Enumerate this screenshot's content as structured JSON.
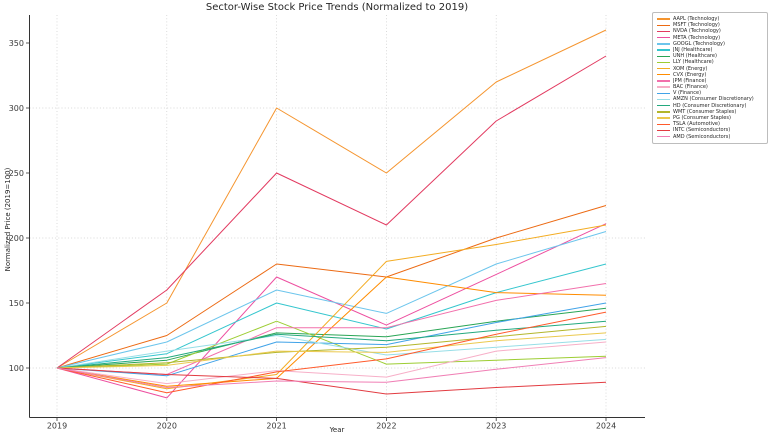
{
  "chart_data": {
    "type": "line",
    "title": "Sector-Wise Stock Price Trends (Normalized to 2019)",
    "xlabel": "Year",
    "ylabel": "Normalized Price (2019=100)",
    "x": [
      2019,
      2020,
      2021,
      2022,
      2023,
      2024
    ],
    "yticks": [
      100,
      150,
      200,
      250,
      300,
      350
    ],
    "grid_y": [
      100,
      200,
      300
    ],
    "ylim": [
      61,
      372
    ],
    "grid_style": "dotted",
    "legend_position": "upper right",
    "series": [
      {
        "label": "AAPL (Technology)",
        "color": "#F5952F",
        "values": [
          100,
          150,
          300,
          250,
          320,
          360
        ]
      },
      {
        "label": "MSFT (Technology)",
        "color": "#EC6A13",
        "values": [
          100,
          125,
          180,
          170,
          200,
          225
        ]
      },
      {
        "label": "NVDA (Technology)",
        "color": "#E23A60",
        "values": [
          100,
          160,
          250,
          210,
          290,
          340
        ]
      },
      {
        "label": "META (Technology)",
        "color": "#ED4FA0",
        "values": [
          100,
          77,
          170,
          133,
          172,
          211
        ]
      },
      {
        "label": "GOOGL (Technology)",
        "color": "#6CC5EC",
        "values": [
          100,
          120,
          160,
          142,
          180,
          205
        ]
      },
      {
        "label": "JNJ (Healthcare)",
        "color": "#35C6CE",
        "values": [
          100,
          111,
          150,
          130,
          158,
          180
        ]
      },
      {
        "label": "UNH (Healthcare)",
        "color": "#29A555",
        "values": [
          100,
          106,
          127,
          124,
          136,
          146
        ]
      },
      {
        "label": "LLY (Healthcare)",
        "color": "#9DCD33",
        "values": [
          100,
          103,
          136,
          103,
          106,
          109
        ]
      },
      {
        "label": "XOM (Energy)",
        "color": "#F3AC22",
        "values": [
          100,
          84,
          95,
          182,
          195,
          210
        ]
      },
      {
        "label": "CVX (Energy)",
        "color": "#FF8C00",
        "values": [
          100,
          86,
          92,
          170,
          158,
          156
        ]
      },
      {
        "label": "JPM (Finance)",
        "color": "#F270AC",
        "values": [
          100,
          95,
          131,
          131,
          152,
          165
        ]
      },
      {
        "label": "BAC (Finance)",
        "color": "#F7AFC8",
        "values": [
          100,
          88,
          98,
          93,
          113,
          120
        ]
      },
      {
        "label": "V (Finance)",
        "color": "#41A3E8",
        "values": [
          100,
          94,
          120,
          118,
          135,
          150
        ]
      },
      {
        "label": "AMZN (Consumer Discretionary)",
        "color": "#97DEE7",
        "values": [
          100,
          113,
          125,
          110,
          116,
          122
        ]
      },
      {
        "label": "HD (Consumer Discretionary)",
        "color": "#23A97E",
        "values": [
          100,
          108,
          126,
          121,
          129,
          136
        ]
      },
      {
        "label": "WMT (Consumer Staples)",
        "color": "#B3B62B",
        "values": [
          100,
          104,
          112,
          116,
          124,
          132
        ]
      },
      {
        "label": "PG (Consumer Staples)",
        "color": "#EBC94E",
        "values": [
          100,
          102,
          113,
          112,
          121,
          127
        ]
      },
      {
        "label": "TSLA (Automotive)",
        "color": "#FF5A2B",
        "values": [
          100,
          81,
          97,
          107,
          126,
          143
        ]
      },
      {
        "label": "INTC (Semiconductors)",
        "color": "#E23B41",
        "values": [
          100,
          95,
          92,
          80,
          85,
          89
        ]
      },
      {
        "label": "AMD (Semiconductors)",
        "color": "#F07FB5",
        "values": [
          100,
          85,
          90,
          89,
          99,
          108
        ]
      }
    ]
  }
}
